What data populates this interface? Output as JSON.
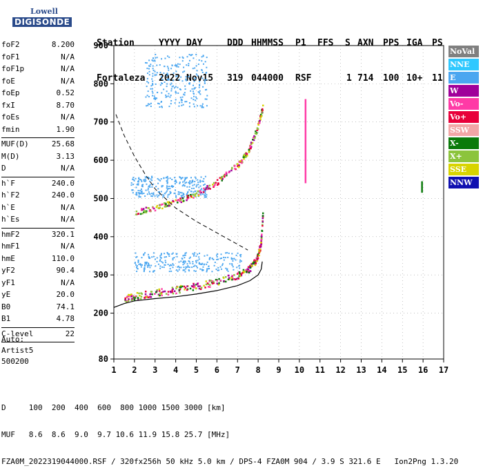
{
  "logo": {
    "line1": "Lowell",
    "line2": "DIGISONDE"
  },
  "header": {
    "labels": [
      "Station",
      "YYYY",
      "DAY",
      "DDD",
      "HHMMSS",
      "P1",
      "FFS",
      "S",
      "AXN",
      "PPS",
      "IGA",
      "PS"
    ],
    "values": [
      "Fortaleza",
      "2022",
      "Nov15",
      "319",
      "044000",
      "RSF",
      "1",
      "714",
      "100",
      "10+",
      "11"
    ]
  },
  "params": {
    "group1": [
      {
        "k": "foF2",
        "v": "8.200"
      },
      {
        "k": "foF1",
        "v": "N/A"
      },
      {
        "k": "foF1p",
        "v": "N/A"
      },
      {
        "k": "foE",
        "v": "N/A"
      },
      {
        "k": "foEp",
        "v": "0.52"
      },
      {
        "k": "fxI",
        "v": "8.70"
      },
      {
        "k": "foEs",
        "v": "N/A"
      },
      {
        "k": "fmin",
        "v": "1.90"
      }
    ],
    "group2": [
      {
        "k": "MUF(D)",
        "v": "25.68"
      },
      {
        "k": "M(D)",
        "v": "3.13"
      },
      {
        "k": "D",
        "v": "N/A"
      }
    ],
    "group3": [
      {
        "k": "h`F",
        "v": "240.0"
      },
      {
        "k": "h`F2",
        "v": "240.0"
      },
      {
        "k": "h`E",
        "v": "N/A"
      },
      {
        "k": "h`Es",
        "v": "N/A"
      }
    ],
    "group4": [
      {
        "k": "hmF2",
        "v": "320.1"
      },
      {
        "k": "hmF1",
        "v": "N/A"
      },
      {
        "k": "hmE",
        "v": "110.0"
      },
      {
        "k": "yF2",
        "v": "90.4"
      },
      {
        "k": "yF1",
        "v": "N/A"
      },
      {
        "k": "yE",
        "v": "20.0"
      },
      {
        "k": "B0",
        "v": "74.1"
      },
      {
        "k": "B1",
        "v": "4.78"
      }
    ],
    "group5": [
      {
        "k": "C-level",
        "v": "22"
      }
    ]
  },
  "auto": {
    "line1": "Auto:",
    "line2": "Artist5",
    "line3": "500200"
  },
  "legend": [
    {
      "label": "NoVal",
      "color": "#808080"
    },
    {
      "label": "NNE",
      "color": "#2fc8ff"
    },
    {
      "label": "E",
      "color": "#4aa6f0"
    },
    {
      "label": "W",
      "color": "#a0009a"
    },
    {
      "label": "Vo-",
      "color": "#ff3aa6"
    },
    {
      "label": "Vo+",
      "color": "#e8003a"
    },
    {
      "label": "SSW",
      "color": "#f2a6a6"
    },
    {
      "label": "X-",
      "color": "#0a7a0a"
    },
    {
      "label": "X+",
      "color": "#8cc43c"
    },
    {
      "label": "SSE",
      "color": "#d8d400"
    },
    {
      "label": "NNW",
      "color": "#1010b0"
    }
  ],
  "footer": {
    "line1": "D     100  200  400  600  800 1000 1500 3000 [km]",
    "line2": "MUF   8.6  8.6  9.0  9.7 10.6 11.9 15.8 25.7 [MHz]",
    "line3": "FZA0M_2022319044000.RSF / 320fx256h 50 kHz 5.0 km / DPS-4 FZA0M 904 / 3.9 S 321.6 E   Ion2Png 1.3.20"
  },
  "chart_data": {
    "type": "scatter",
    "xlim": [
      1,
      17
    ],
    "ylim": [
      80,
      900
    ],
    "x_ticks": [
      1,
      2,
      3,
      4,
      5,
      6,
      7,
      8,
      9,
      10,
      11,
      12,
      13,
      14,
      15,
      16,
      17
    ],
    "y_ticks": [
      80,
      200,
      300,
      400,
      500,
      600,
      700,
      800,
      900
    ],
    "grid": true,
    "curves": {
      "profile": {
        "x": [
          1.0,
          1.5,
          2.0,
          3.0,
          4.0,
          5.0,
          6.0,
          7.0,
          7.6,
          8.0,
          8.15,
          8.2
        ],
        "y": [
          215,
          225,
          232,
          238,
          243,
          250,
          259,
          272,
          285,
          300,
          315,
          335
        ]
      },
      "muf": {
        "x": [
          1.1,
          1.5,
          2.0,
          2.5,
          3.0,
          3.5,
          4.0,
          5.0,
          6.0,
          7.0,
          7.5
        ],
        "y": [
          720,
          665,
          610,
          565,
          525,
          500,
          475,
          440,
          410,
          380,
          365
        ]
      },
      "trace_o": {
        "x": [
          1.5,
          2.0,
          3.0,
          4.0,
          5.0,
          6.0,
          7.0,
          7.5,
          7.9,
          8.1,
          8.2
        ],
        "y": [
          240,
          246,
          255,
          263,
          272,
          283,
          300,
          315,
          340,
          380,
          460
        ]
      },
      "trace_2f": {
        "x": [
          2.0,
          3.0,
          4.0,
          5.0,
          6.0,
          7.0,
          7.5,
          7.9,
          8.2
        ],
        "y": [
          465,
          477,
          493,
          514,
          545,
          590,
          625,
          680,
          740
        ]
      }
    },
    "regions": [
      {
        "name": "",
        "x": [
          2.0,
          7.3
        ],
        "y": [
          310,
          360
        ],
        "color": "#4aa6f0"
      },
      {
        "name": "",
        "x": [
          1.8,
          5.5
        ],
        "y": [
          505,
          560
        ],
        "color": "#4aa6f0"
      },
      {
        "name": "",
        "x": [
          2.5,
          5.5
        ],
        "y": [
          740,
          880
        ],
        "color": "#4aa6f0"
      }
    ],
    "spikes": [
      {
        "x": 10.3,
        "y": [
          540,
          760
        ],
        "color": "#ff3aa6"
      },
      {
        "x": 15.95,
        "y": [
          515,
          545
        ],
        "color": "#0a7a0a"
      }
    ]
  }
}
